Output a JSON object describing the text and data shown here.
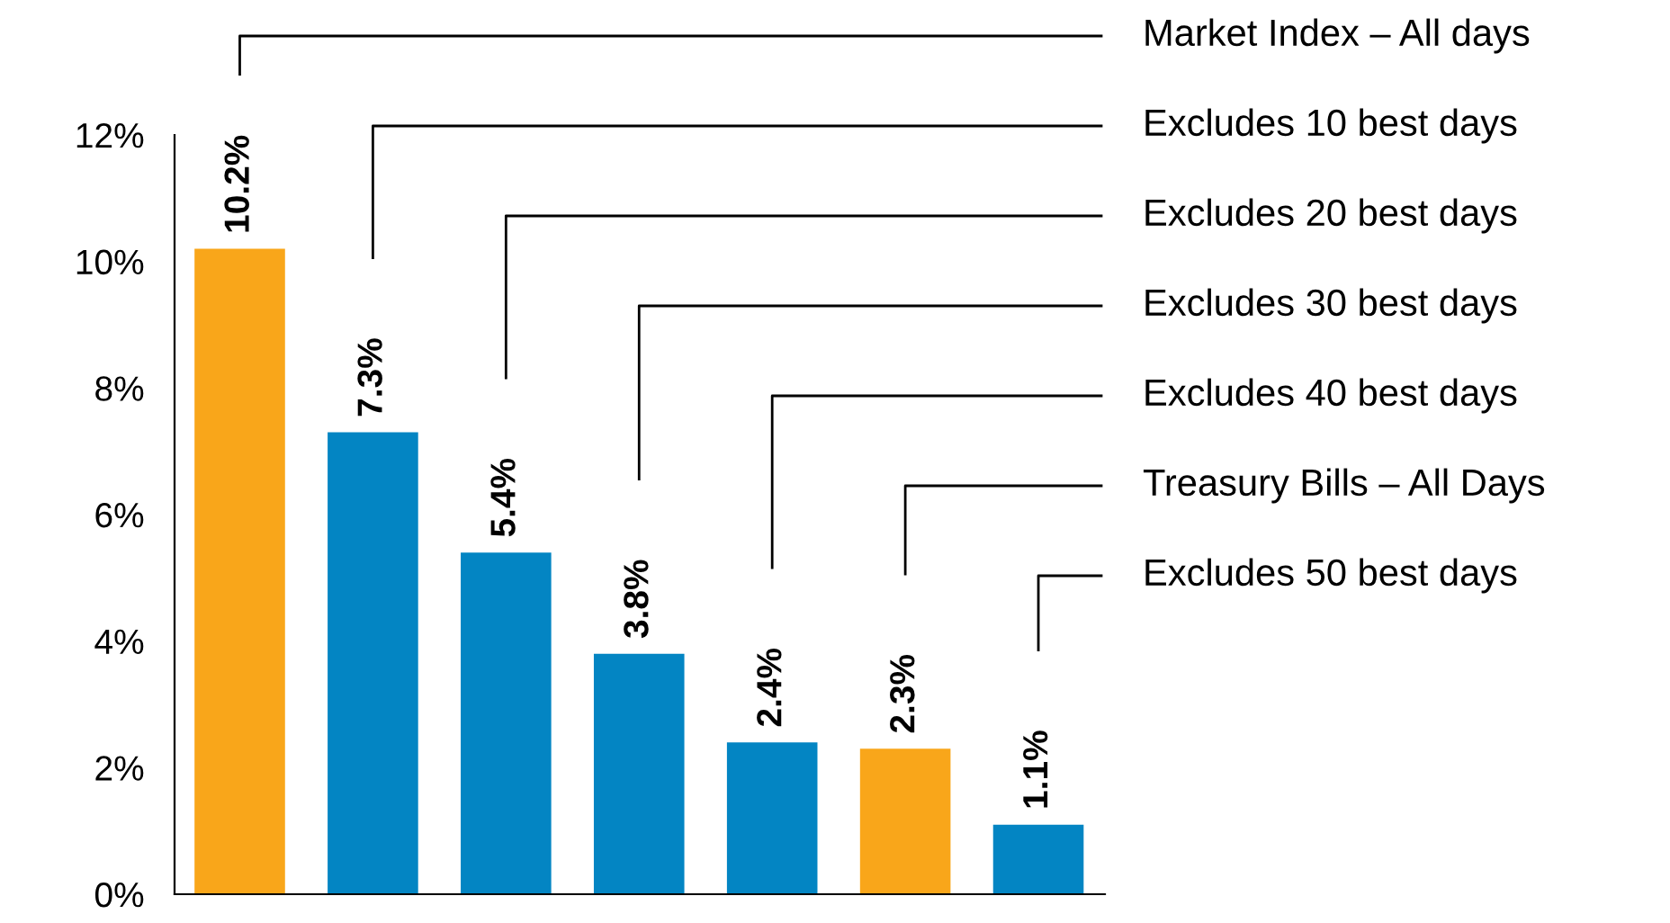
{
  "chart_data": {
    "type": "bar",
    "categories": [
      null,
      null,
      null,
      null,
      null,
      null,
      null
    ],
    "series": [
      {
        "name": "Market Index – All days",
        "color": "#f9a61a",
        "values": [
          10.2,
          null,
          null,
          null,
          null,
          null,
          null
        ],
        "value_labels": [
          "10.2%",
          null,
          null,
          null,
          null,
          null,
          null
        ]
      },
      {
        "name": "Excludes 10 best days",
        "color": "#0385c3",
        "values": [
          null,
          7.3,
          null,
          null,
          null,
          null,
          null
        ],
        "value_labels": [
          null,
          "7.3%",
          null,
          null,
          null,
          null,
          null
        ]
      },
      {
        "name": "Excludes 20 best days",
        "color": "#0385c3",
        "values": [
          null,
          null,
          5.4,
          null,
          null,
          null,
          null
        ],
        "value_labels": [
          null,
          null,
          "5.4%",
          null,
          null,
          null,
          null
        ]
      },
      {
        "name": "Excludes 30 best days",
        "color": "#0385c3",
        "values": [
          null,
          null,
          null,
          3.8,
          null,
          null,
          null
        ],
        "value_labels": [
          null,
          null,
          null,
          "3.8%",
          null,
          null,
          null
        ]
      },
      {
        "name": "Excludes 40 best days",
        "color": "#0385c3",
        "values": [
          null,
          null,
          null,
          null,
          2.4,
          null,
          null
        ],
        "value_labels": [
          null,
          null,
          null,
          null,
          "2.4%",
          null,
          null
        ]
      },
      {
        "name": "Treasury Bills – All Days",
        "color": "#f9a61a",
        "values": [
          null,
          null,
          null,
          null,
          null,
          2.3,
          null
        ],
        "value_labels": [
          null,
          null,
          null,
          null,
          null,
          "2.3%",
          null
        ]
      },
      {
        "name": "Excludes 50 best days",
        "color": "#0385c3",
        "values": [
          null,
          null,
          null,
          null,
          null,
          null,
          1.1
        ],
        "value_labels": [
          null,
          null,
          null,
          null,
          null,
          null,
          "1.1%"
        ]
      }
    ],
    "ylim": [
      0,
      12
    ],
    "yticks": [
      {
        "value": 0,
        "label": "0%"
      },
      {
        "value": 2,
        "label": "2%"
      },
      {
        "value": 4,
        "label": "4%"
      },
      {
        "value": 6,
        "label": "6%"
      },
      {
        "value": 8,
        "label": "8%"
      },
      {
        "value": 10,
        "label": "10%"
      },
      {
        "value": 12,
        "label": "12%"
      }
    ],
    "tick_labels": "y",
    "grid": false
  }
}
